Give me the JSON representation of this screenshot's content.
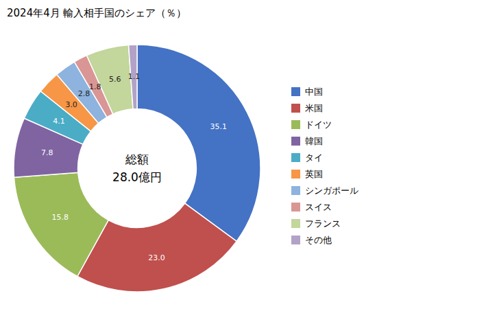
{
  "chart_data": {
    "type": "pie",
    "title": "2024年4月 輸入相手国のシェア（％）",
    "annotations": [
      "総額",
      "28.0億円"
    ],
    "categories": [
      "中国",
      "米国",
      "ドイツ",
      "韓国",
      "タイ",
      "英国",
      "シンガポール",
      "スイス",
      "フランス",
      "その他"
    ],
    "values": [
      35.1,
      23.0,
      15.8,
      7.8,
      4.1,
      3.0,
      2.8,
      1.8,
      5.6,
      1.1
    ],
    "value_labels": [
      "35.1",
      "23.0",
      "15.8",
      "7.8",
      "4.1",
      "3.0",
      "2.8",
      "1.8",
      "5.6",
      "1.1"
    ],
    "colors": [
      "#4472C4",
      "#C0504D",
      "#9BBB59",
      "#8064A2",
      "#4BACC6",
      "#F79646",
      "#8db3de",
      "#D99694",
      "#C3D69B",
      "#B2A2C7"
    ],
    "data_labels": true,
    "legend": "right"
  }
}
